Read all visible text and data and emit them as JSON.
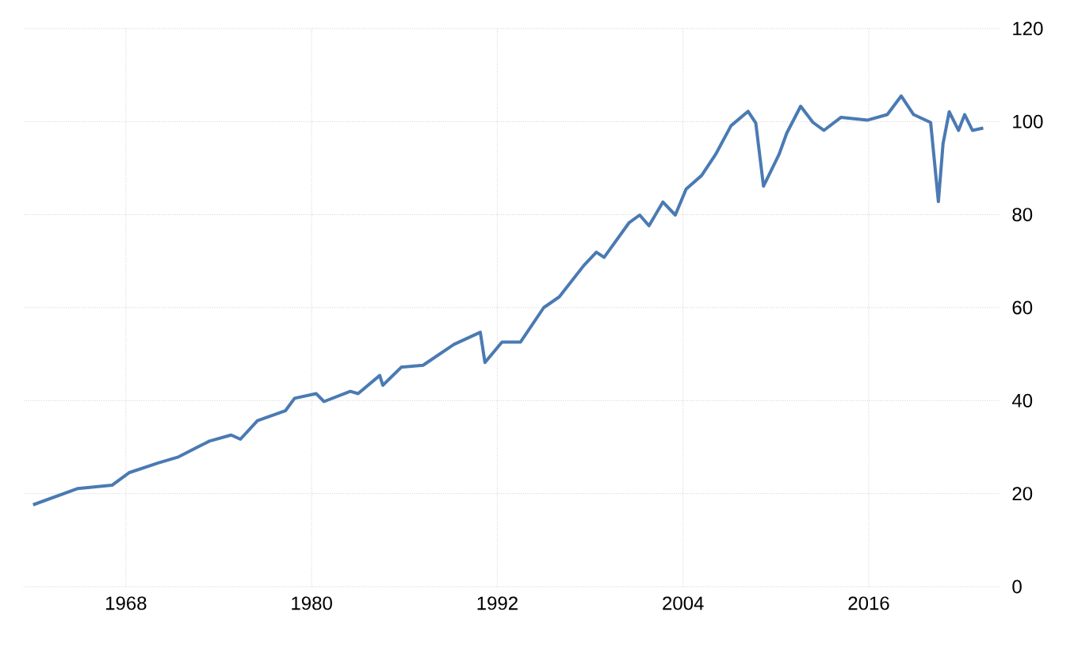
{
  "chart_data": {
    "type": "line",
    "color": "#4a7ab3",
    "x": [
      1962.0,
      1964.9,
      1967.1,
      1968.2,
      1970.1,
      1971.4,
      1973.4,
      1974.8,
      1975.4,
      1976.5,
      1978.3,
      1978.9,
      1980.3,
      1980.8,
      1982.5,
      1983.0,
      1984.4,
      1984.6,
      1985.8,
      1987.2,
      1989.2,
      1990.9,
      1991.2,
      1992.3,
      1993.5,
      1995.0,
      1996.0,
      1997.6,
      1998.4,
      1998.9,
      2000.5,
      2001.2,
      2001.8,
      2002.7,
      2003.5,
      2004.2,
      2005.2,
      2006.1,
      2007.1,
      2008.2,
      2008.7,
      2009.2,
      2009.7,
      2010.2,
      2010.7,
      2011.6,
      2012.4,
      2013.1,
      2014.2,
      2015.9,
      2017.2,
      2018.1,
      2018.9,
      2020.0,
      2020.5,
      2020.8,
      2021.2,
      2021.8,
      2022.2,
      2022.7,
      2023.4
    ],
    "values": [
      17.6,
      21.1,
      21.8,
      24.5,
      26.6,
      27.9,
      31.3,
      32.6,
      31.7,
      35.7,
      37.8,
      40.5,
      41.5,
      39.8,
      42.0,
      41.5,
      45.4,
      43.3,
      47.2,
      47.6,
      52.1,
      54.7,
      48.2,
      52.6,
      52.6,
      60.0,
      62.3,
      69.1,
      71.9,
      70.8,
      78.2,
      79.9,
      77.6,
      82.7,
      79.9,
      85.5,
      88.4,
      92.9,
      99.1,
      102.2,
      99.7,
      86.1,
      89.5,
      92.9,
      97.5,
      103.3,
      99.8,
      98.1,
      100.9,
      100.3,
      101.5,
      105.5,
      101.5,
      99.8,
      82.8,
      95.2,
      102.1,
      98.1,
      101.5,
      98.1,
      98.6
    ],
    "xlim": [
      1961.4,
      2024.4
    ],
    "ylim": [
      0,
      120
    ],
    "xticks": [
      1968,
      1980,
      1992,
      2004,
      2016
    ],
    "yticks": [
      0,
      20,
      40,
      60,
      80,
      100,
      120
    ],
    "grid": true,
    "line_style": "solid",
    "marker": "none"
  }
}
